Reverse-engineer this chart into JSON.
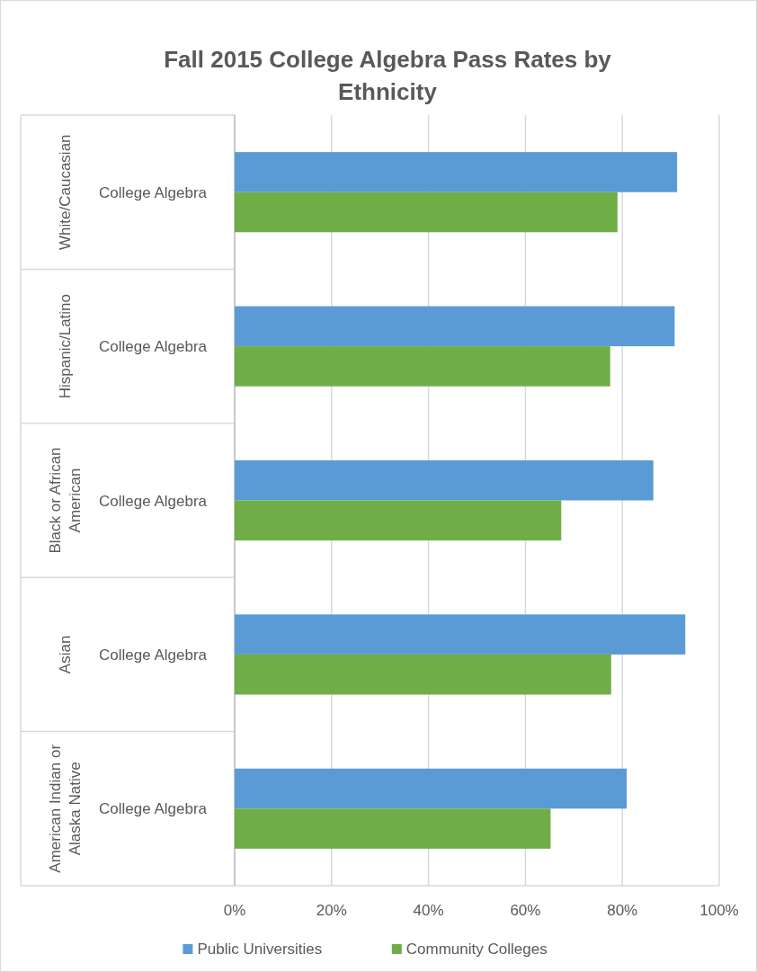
{
  "chart_data": {
    "type": "bar",
    "orientation": "horizontal",
    "title": "Fall 2015 College Algebra Pass Rates by Ethnicity",
    "categories": [
      "College Algebra",
      "College Algebra",
      "College Algebra",
      "College Algebra",
      "College Algebra"
    ],
    "series": [
      {
        "name": "Public Universities",
        "color": "#5b9bd5",
        "values": [
          91.3,
          90.8,
          86.4,
          93.0,
          80.9
        ]
      },
      {
        "name": "Community Colleges",
        "color": "#70ad47",
        "values": [
          79.0,
          77.5,
          67.4,
          77.7,
          65.2
        ]
      }
    ],
    "annotations": [
      "White/Caucasian",
      "Hispanic/Latino",
      "Black or African American",
      "Asian",
      "American Indian or Alaska Native"
    ],
    "xlim": [
      0,
      100
    ],
    "xticks": [
      {
        "value": 0,
        "label": "0%"
      },
      {
        "value": 20,
        "label": "20%"
      },
      {
        "value": 40,
        "label": "40%"
      },
      {
        "value": 60,
        "label": "60%"
      },
      {
        "value": 80,
        "label": "80%"
      },
      {
        "value": 100,
        "label": "100%"
      }
    ],
    "grid": "x",
    "legend": "bottom"
  }
}
